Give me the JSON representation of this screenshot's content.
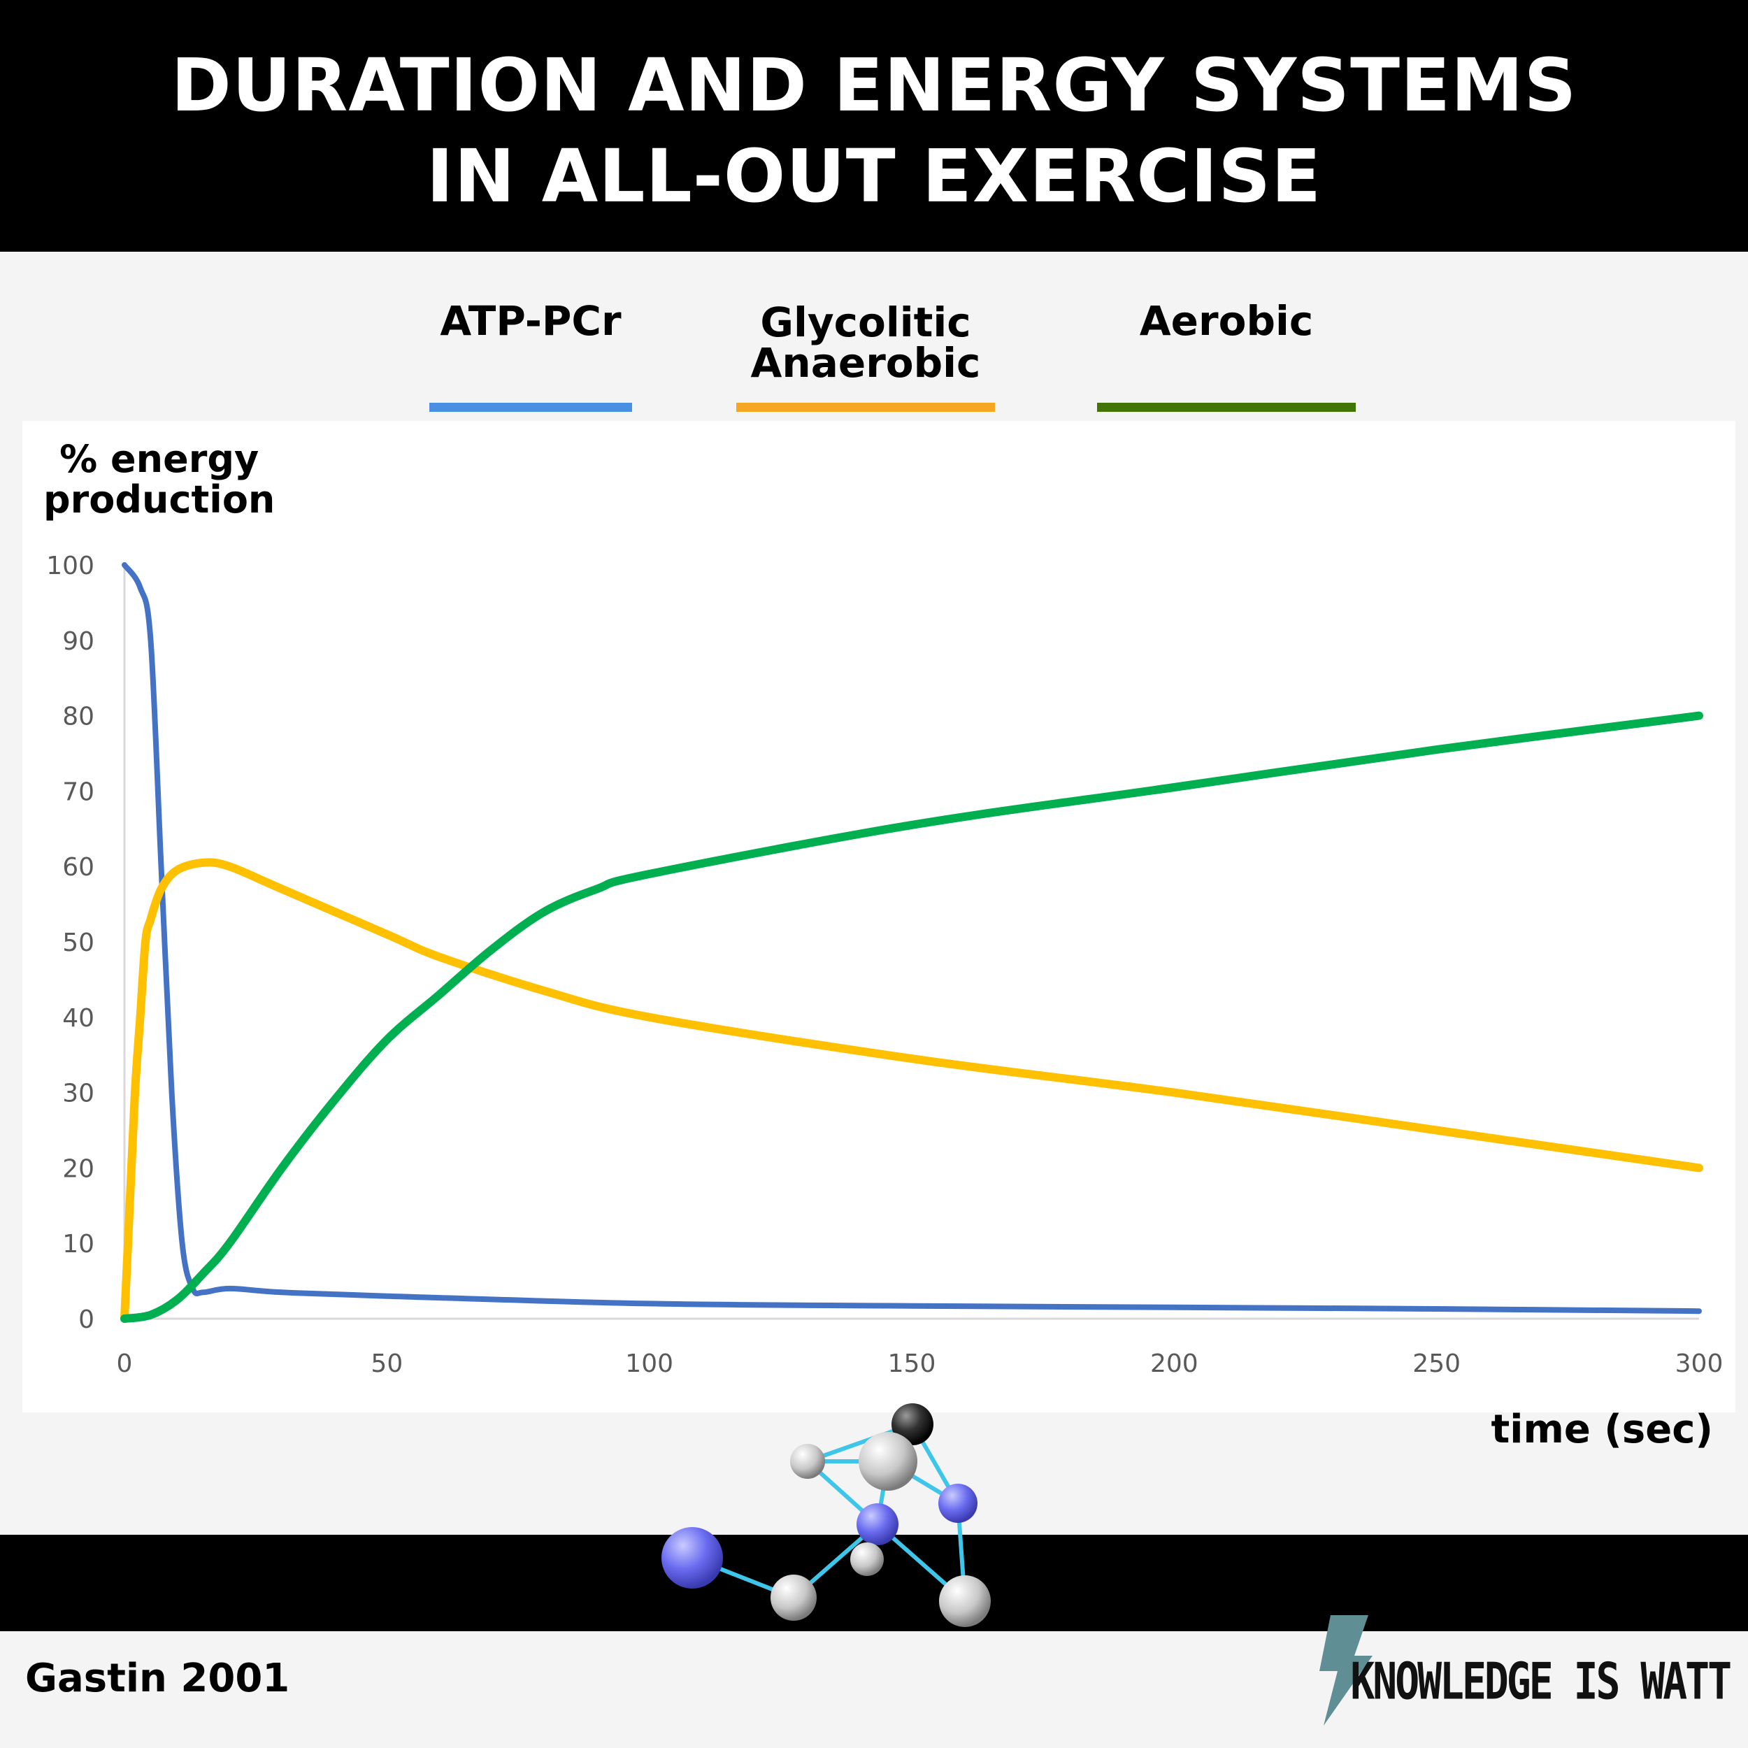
{
  "header": {
    "title_line1": "DURATION AND ENERGY SYSTEMS",
    "title_line2": "IN ALL-OUT EXERCISE"
  },
  "legend": [
    {
      "label_line1": "",
      "label_line2": "ATP-PCr",
      "color": "#4a90e2"
    },
    {
      "label_line1": "Glycolitic",
      "label_line2": "Anaerobic",
      "color": "#f5a623"
    },
    {
      "label_line1": "",
      "label_line2": "Aerobic",
      "color": "#417505"
    }
  ],
  "chart_data": {
    "type": "line",
    "xlabel": "time (sec)",
    "ylabel_line1": "% energy",
    "ylabel_line2": "production",
    "xlim": [
      0,
      300
    ],
    "ylim": [
      0,
      100
    ],
    "xticks": [
      0,
      50,
      100,
      150,
      200,
      250,
      300
    ],
    "yticks": [
      0,
      10,
      20,
      30,
      40,
      50,
      60,
      70,
      80,
      90,
      100
    ],
    "grid": false,
    "series": [
      {
        "name": "ATP-PCr",
        "color": "#4472c4",
        "x": [
          0,
          3,
          5,
          7,
          9,
          11,
          13,
          15,
          20,
          30,
          50,
          100,
          150,
          200,
          250,
          300
        ],
        "y": [
          100,
          97,
          90,
          60,
          30,
          10,
          4,
          3.5,
          4,
          3.5,
          3,
          2,
          1.7,
          1.5,
          1.3,
          1
        ]
      },
      {
        "name": "Glycolitic Anaerobic",
        "color": "#ffc000",
        "x": [
          0,
          1,
          2,
          3,
          4,
          5,
          7,
          10,
          15,
          20,
          30,
          50,
          60,
          80,
          100,
          150,
          200,
          250,
          300
        ],
        "y": [
          0,
          15,
          30,
          40,
          50,
          53,
          57,
          59.5,
          60.5,
          60,
          57,
          51,
          48,
          43.5,
          40,
          34.5,
          30,
          25,
          20
        ]
      },
      {
        "name": "Aerobic",
        "color": "#00b050",
        "x": [
          0,
          5,
          10,
          15,
          20,
          30,
          40,
          50,
          60,
          70,
          80,
          90,
          100,
          150,
          200,
          250,
          300
        ],
        "y": [
          0,
          0.5,
          2.5,
          6,
          10,
          20,
          29,
          37,
          43,
          49,
          54,
          57,
          59,
          65.5,
          70.5,
          75.5,
          80
        ]
      }
    ]
  },
  "footer": {
    "source": "Gastin 2001",
    "brand": "KNOWLEDGE IS WATT"
  }
}
